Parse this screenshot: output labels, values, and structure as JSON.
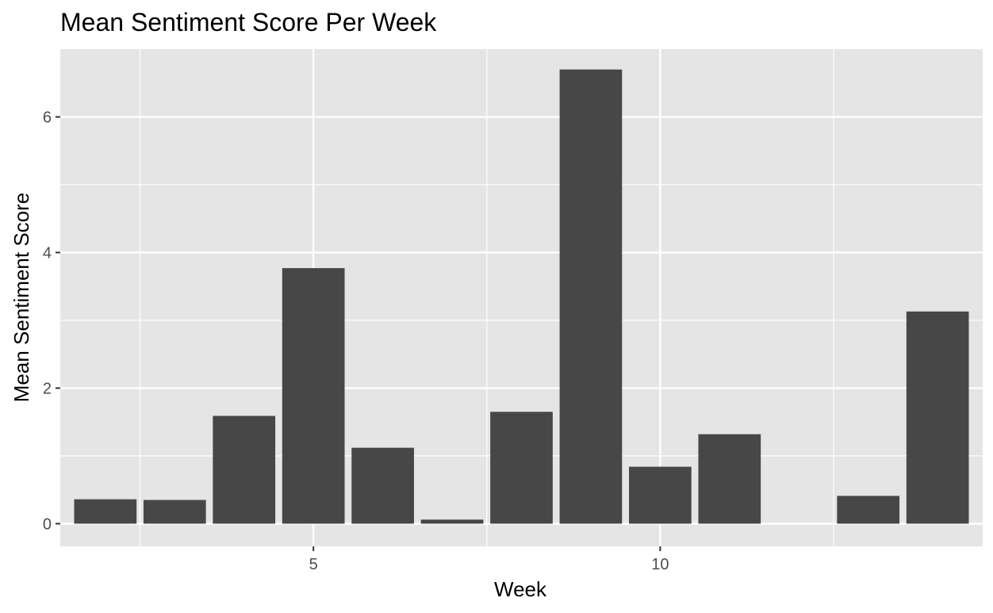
{
  "chart_data": {
    "type": "bar",
    "title": "Mean Sentiment Score Per Week",
    "xlabel": "Week",
    "ylabel": "Mean Sentiment Score",
    "x": [
      2,
      3,
      4,
      5,
      6,
      7,
      8,
      9,
      10,
      11,
      13,
      14
    ],
    "values": [
      0.36,
      0.35,
      1.59,
      3.77,
      1.12,
      0.06,
      1.65,
      6.7,
      0.84,
      1.32,
      0.41,
      3.13
    ],
    "xlim": [
      1.35,
      14.65
    ],
    "ylim": [
      -0.335,
      7.0
    ],
    "xticks": [
      5,
      10,
      15
    ],
    "yticks": [
      0,
      2,
      4,
      6
    ],
    "bar_color": "#474747",
    "panel_background": "#e5e5e5",
    "grid": true,
    "legend": "none"
  }
}
